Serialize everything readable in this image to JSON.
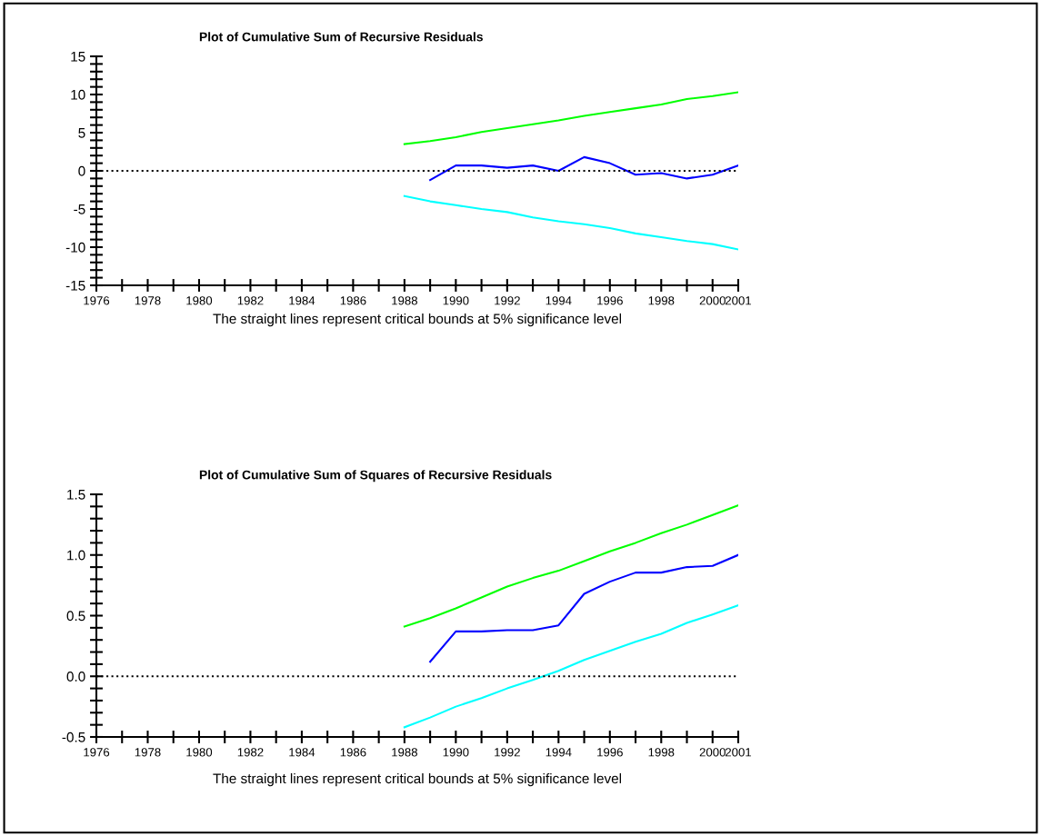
{
  "chart_data": [
    {
      "type": "line",
      "title": "Plot of Cumulative Sum of Recursive Residuals",
      "annotations": [
        "The straight lines represent critical bounds at 5% significance level"
      ],
      "x": [
        1988,
        1989,
        1990,
        1991,
        1992,
        1993,
        1994,
        1995,
        1996,
        1997,
        1998,
        1999,
        2000,
        2001
      ],
      "series": [
        {
          "color": "#00ff00",
          "values": [
            3.5,
            3.9,
            4.4,
            5.1,
            5.6,
            6.1,
            6.6,
            7.2,
            7.7,
            8.2,
            8.7,
            9.4,
            9.8,
            10.3
          ]
        },
        {
          "color": "#0000ff",
          "values": [
            null,
            -1.2,
            0.7,
            0.7,
            0.4,
            0.7,
            0,
            1.8,
            1.0,
            -0.5,
            -0.3,
            -1.0,
            -0.5,
            0.7
          ]
        },
        {
          "color": "#00ffff",
          "values": [
            -3.3,
            -4.0,
            -4.5,
            -5.0,
            -5.4,
            -6.1,
            -6.6,
            -7.0,
            -7.5,
            -8.2,
            -8.7,
            -9.2,
            -9.6,
            -10.3
          ]
        }
      ],
      "xlim": [
        1976,
        2001
      ],
      "xticks": [
        1976,
        {
          "value": 1977,
          "label": null
        },
        1978,
        {
          "value": 1979,
          "label": null
        },
        1980,
        {
          "value": 1981,
          "label": null
        },
        1982,
        {
          "value": 1983,
          "label": null
        },
        1984,
        {
          "value": 1985,
          "label": null
        },
        1986,
        {
          "value": 1987,
          "label": null
        },
        1988,
        {
          "value": 1989,
          "label": null
        },
        1990,
        {
          "value": 1991,
          "label": null
        },
        1992,
        {
          "value": 1993,
          "label": null
        },
        1994,
        {
          "value": 1995,
          "label": null
        },
        1996,
        {
          "value": 1997,
          "label": null
        },
        1998,
        {
          "value": 1999,
          "label": null
        },
        2000,
        2001
      ],
      "ylim": [
        -15,
        15
      ],
      "yticks": [
        -15,
        {
          "value": -14,
          "label": null
        },
        {
          "value": -13,
          "label": null
        },
        {
          "value": -12,
          "label": null
        },
        {
          "value": -11,
          "label": null
        },
        -10,
        {
          "value": -9,
          "label": null
        },
        {
          "value": -8,
          "label": null
        },
        {
          "value": -7,
          "label": null
        },
        {
          "value": -6,
          "label": null
        },
        -5,
        {
          "value": -4,
          "label": null
        },
        {
          "value": -3,
          "label": null
        },
        {
          "value": -2,
          "label": null
        },
        {
          "value": -1,
          "label": null
        },
        0,
        {
          "value": 1,
          "label": null
        },
        {
          "value": 2,
          "label": null
        },
        {
          "value": 3,
          "label": null
        },
        {
          "value": 4,
          "label": null
        },
        5,
        {
          "value": 6,
          "label": null
        },
        {
          "value": 7,
          "label": null
        },
        {
          "value": 8,
          "label": null
        },
        {
          "value": 9,
          "label": null
        },
        10,
        {
          "value": 11,
          "label": null
        },
        {
          "value": 12,
          "label": null
        },
        {
          "value": 13,
          "label": null
        },
        {
          "value": 14,
          "label": null
        },
        15
      ],
      "ref_lines": [
        {
          "axis": "y",
          "value": 0,
          "color": "#000000",
          "line_style": "dotted"
        }
      ],
      "grid": false,
      "legend": false
    },
    {
      "type": "line",
      "title": "Plot of Cumulative Sum of Squares of Recursive Residuals",
      "annotations": [
        "The straight lines represent critical bounds at 5% significance level"
      ],
      "x": [
        1988,
        1989,
        1990,
        1991,
        1992,
        1993,
        1994,
        1995,
        1996,
        1997,
        1998,
        1999,
        2000,
        2001
      ],
      "series": [
        {
          "color": "#00ff00",
          "values": [
            0.41,
            0.48,
            0.56,
            0.65,
            0.74,
            0.81,
            0.87,
            0.95,
            1.03,
            1.1,
            1.18,
            1.25,
            1.33,
            1.41
          ]
        },
        {
          "color": "#0000ff",
          "values": [
            null,
            0.12,
            0.37,
            0.37,
            0.38,
            0.38,
            0.42,
            0.68,
            0.78,
            0.855,
            0.855,
            0.9,
            0.91,
            1.0
          ]
        },
        {
          "color": "#00ffff",
          "values": [
            -0.42,
            -0.34,
            -0.25,
            -0.18,
            -0.1,
            -0.03,
            0.045,
            0.135,
            0.21,
            0.285,
            0.35,
            0.44,
            0.51,
            0.585
          ]
        }
      ],
      "xlim": [
        1976,
        2001
      ],
      "xticks": [
        1976,
        {
          "value": 1977,
          "label": null
        },
        1978,
        {
          "value": 1979,
          "label": null
        },
        1980,
        {
          "value": 1981,
          "label": null
        },
        1982,
        {
          "value": 1983,
          "label": null
        },
        1984,
        {
          "value": 1985,
          "label": null
        },
        1986,
        {
          "value": 1987,
          "label": null
        },
        1988,
        {
          "value": 1989,
          "label": null
        },
        1990,
        {
          "value": 1991,
          "label": null
        },
        1992,
        {
          "value": 1993,
          "label": null
        },
        1994,
        {
          "value": 1995,
          "label": null
        },
        1996,
        {
          "value": 1997,
          "label": null
        },
        1998,
        {
          "value": 1999,
          "label": null
        },
        2000,
        2001
      ],
      "ylim": [
        -0.5,
        1.5
      ],
      "yticks": [
        -0.5,
        {
          "value": -0.4,
          "label": null
        },
        {
          "value": -0.3,
          "label": null
        },
        {
          "value": -0.2,
          "label": null
        },
        {
          "value": -0.1,
          "label": null
        },
        {
          "value": 0,
          "label": "0.0"
        },
        {
          "value": 0.1,
          "label": null
        },
        {
          "value": 0.2,
          "label": null
        },
        {
          "value": 0.3,
          "label": null
        },
        {
          "value": 0.4,
          "label": null
        },
        0.5,
        {
          "value": 0.6,
          "label": null
        },
        {
          "value": 0.7,
          "label": null
        },
        {
          "value": 0.8,
          "label": null
        },
        {
          "value": 0.9,
          "label": null
        },
        {
          "value": 1.0,
          "label": "1.0"
        },
        {
          "value": 1.1,
          "label": null
        },
        {
          "value": 1.2,
          "label": null
        },
        {
          "value": 1.3,
          "label": null
        },
        {
          "value": 1.4,
          "label": null
        },
        1.5
      ],
      "ref_lines": [
        {
          "axis": "y",
          "value": 0,
          "color": "#000000",
          "line_style": "dotted"
        }
      ],
      "grid": false,
      "legend": false
    }
  ]
}
